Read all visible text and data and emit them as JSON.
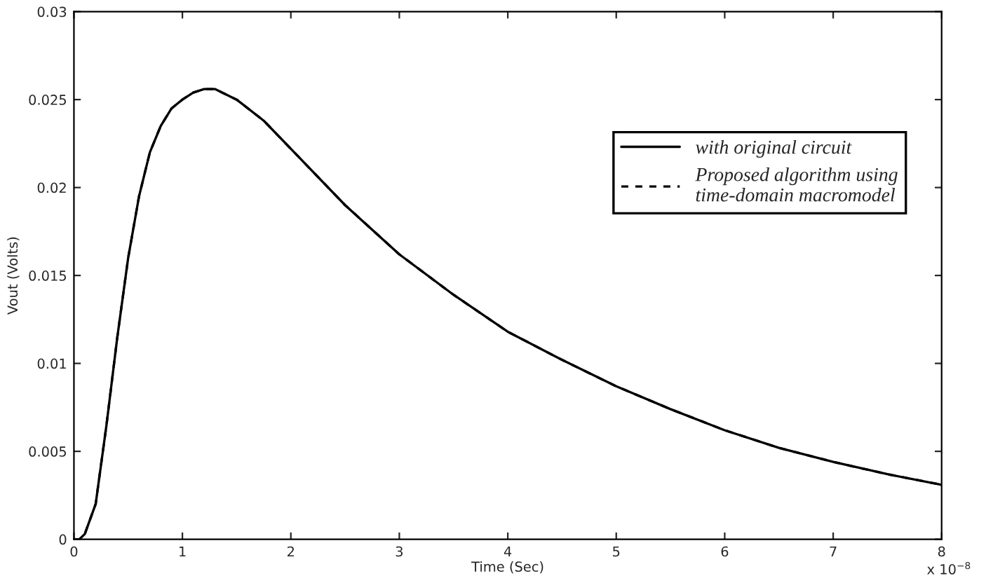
{
  "chart_data": {
    "type": "line",
    "xlabel": "Time (Sec)",
    "ylabel": "Vout (Volts)",
    "x": [
      0,
      0.05,
      0.1,
      0.2,
      0.3,
      0.4,
      0.5,
      0.6,
      0.7,
      0.8,
      0.9,
      1.0,
      1.1,
      1.2,
      1.3,
      1.5,
      1.75,
      2,
      2.5,
      3,
      3.5,
      4,
      4.5,
      5,
      5.5,
      6,
      6.5,
      7,
      7.5,
      8
    ],
    "series": [
      {
        "name": "with original circuit",
        "color": "#000000",
        "line_style": "solid",
        "values": [
          0,
          0,
          0.0003,
          0.002,
          0.0065,
          0.0115,
          0.016,
          0.0195,
          0.022,
          0.0235,
          0.0245,
          0.025,
          0.0254,
          0.0256,
          0.0256,
          0.025,
          0.0238,
          0.0222,
          0.019,
          0.0162,
          0.0139,
          0.0118,
          0.0102,
          0.0087,
          0.0074,
          0.0062,
          0.0052,
          0.0044,
          0.0037,
          0.0031
        ]
      },
      {
        "name": "Proposed algorithm using\ntime-domain macromodel",
        "color": "#000000",
        "line_style": "dashed",
        "values": [
          0,
          0,
          0.0003,
          0.002,
          0.0065,
          0.0115,
          0.016,
          0.0195,
          0.022,
          0.0235,
          0.0245,
          0.025,
          0.0254,
          0.0256,
          0.0256,
          0.025,
          0.0238,
          0.0222,
          0.019,
          0.0162,
          0.0139,
          0.0118,
          0.0102,
          0.0087,
          0.0074,
          0.0062,
          0.0052,
          0.0044,
          0.0037,
          0.0031
        ]
      }
    ],
    "xlim": [
      0,
      8
    ],
    "ylim": [
      0,
      0.03
    ],
    "xticks": [
      0,
      1,
      2,
      3,
      4,
      5,
      6,
      7,
      8
    ],
    "yticks": [
      0,
      0.005,
      0.01,
      0.015,
      0.02,
      0.025,
      0.03
    ],
    "annotations": [
      "x 10$^{−8}$"
    ],
    "legend": "top right",
    "grid": false
  }
}
